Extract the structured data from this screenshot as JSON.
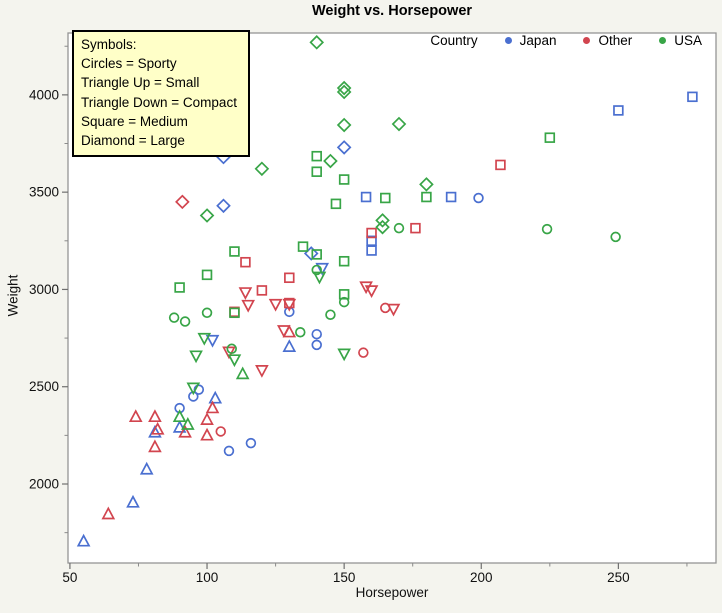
{
  "page": {
    "title": "Weight vs. Horsepower"
  },
  "symbols_legend": {
    "lines": [
      "Symbols:",
      "Circles = Sporty",
      "Triangle Up = Small",
      "Triangle Down = Compact",
      "Square = Medium",
      "Diamond = Large"
    ]
  },
  "country_legend": {
    "label": "Country",
    "entries": [
      {
        "label": "Japan",
        "color": "#4a6fd0"
      },
      {
        "label": "Other",
        "color": "#d2454f"
      },
      {
        "label": "USA",
        "color": "#38a547"
      }
    ]
  },
  "chart_data": {
    "type": "scatter",
    "title": "Weight vs. Horsepower",
    "xlabel": "Horsepower",
    "ylabel": "Weight",
    "xlim": [
      49.3,
      285.6
    ],
    "ylim": [
      1594,
      4318
    ],
    "x_ticks": [
      50,
      100,
      150,
      200,
      250
    ],
    "x_minor_ticks": [
      75,
      125,
      175,
      225,
      275
    ],
    "y_ticks": [
      2000,
      2500,
      3000,
      3500,
      4000
    ],
    "y_minor_ticks": [
      1750,
      2250,
      2750,
      3250,
      3750,
      4250
    ],
    "grid": false,
    "legend_position": "top-right-inside",
    "marker_meaning": {
      "circle": "Sporty",
      "triangle-up": "Small",
      "triangle-down": "Compact",
      "square": "Medium",
      "diamond": "Large"
    },
    "color_meaning": {
      "#4a6fd0": "Japan",
      "#d2454f": "Other",
      "#38a547": "USA"
    },
    "series": [
      {
        "name": "Japan Sporty",
        "country": "Japan",
        "vehicle_type": "Sporty",
        "marker": "circle",
        "color": "#4a6fd0",
        "points": [
          [
            199,
            3470
          ],
          [
            130,
            2885
          ],
          [
            140,
            2770
          ],
          [
            140,
            2715
          ],
          [
            116,
            2210
          ],
          [
            108,
            2170
          ],
          [
            97,
            2485
          ],
          [
            95,
            2450
          ],
          [
            90,
            2390
          ]
        ]
      },
      {
        "name": "Japan Small",
        "country": "Japan",
        "vehicle_type": "Small",
        "marker": "triangle-up",
        "color": "#4a6fd0",
        "points": [
          [
            130,
            2705
          ],
          [
            103,
            2440
          ],
          [
            90,
            2290
          ],
          [
            81,
            2265
          ],
          [
            78,
            2075
          ],
          [
            73,
            1905
          ],
          [
            55,
            1705
          ]
        ]
      },
      {
        "name": "Japan Compact",
        "country": "Japan",
        "vehicle_type": "Compact",
        "marker": "triangle-down",
        "color": "#4a6fd0",
        "points": [
          [
            142,
            3110
          ],
          [
            102,
            2740
          ]
        ]
      },
      {
        "name": "Japan Medium",
        "country": "Japan",
        "vehicle_type": "Medium",
        "marker": "square",
        "color": "#4a6fd0",
        "points": [
          [
            277,
            3990
          ],
          [
            250,
            3920
          ],
          [
            189,
            3475
          ],
          [
            158,
            3475
          ],
          [
            160,
            3250
          ],
          [
            160,
            3200
          ]
        ]
      },
      {
        "name": "Japan Large",
        "country": "Japan",
        "vehicle_type": "Large",
        "marker": "diamond",
        "color": "#4a6fd0",
        "points": [
          [
            150,
            3730
          ],
          [
            106,
            3680
          ],
          [
            106,
            3430
          ],
          [
            138,
            3185
          ]
        ]
      },
      {
        "name": "Other Sporty",
        "country": "Other",
        "vehicle_type": "Sporty",
        "marker": "circle",
        "color": "#d2454f",
        "points": [
          [
            165,
            2905
          ],
          [
            157,
            2675
          ],
          [
            105,
            2270
          ]
        ]
      },
      {
        "name": "Other Small",
        "country": "Other",
        "vehicle_type": "Small",
        "marker": "triangle-up",
        "color": "#d2454f",
        "points": [
          [
            130,
            2780
          ],
          [
            102,
            2390
          ],
          [
            100,
            2330
          ],
          [
            100,
            2250
          ],
          [
            92,
            2265
          ],
          [
            82,
            2280
          ],
          [
            81,
            2345
          ],
          [
            81,
            2190
          ],
          [
            74,
            2345
          ],
          [
            64,
            1845
          ]
        ]
      },
      {
        "name": "Other Compact",
        "country": "Other",
        "vehicle_type": "Compact",
        "marker": "triangle-down",
        "color": "#d2454f",
        "points": [
          [
            168,
            2900
          ],
          [
            160,
            2995
          ],
          [
            158,
            3015
          ],
          [
            130,
            2925
          ],
          [
            128,
            2790
          ],
          [
            125,
            2925
          ],
          [
            120,
            2585
          ],
          [
            115,
            2920
          ],
          [
            114,
            2985
          ],
          [
            108,
            2680
          ]
        ]
      },
      {
        "name": "Other Medium",
        "country": "Other",
        "vehicle_type": "Medium",
        "marker": "square",
        "color": "#d2454f",
        "points": [
          [
            207,
            3640
          ],
          [
            176,
            3315
          ],
          [
            160,
            3290
          ],
          [
            130,
            3060
          ],
          [
            130,
            2930
          ],
          [
            120,
            2995
          ],
          [
            114,
            3140
          ],
          [
            110,
            2885
          ]
        ]
      },
      {
        "name": "Other Large",
        "country": "Other",
        "vehicle_type": "Large",
        "marker": "diamond",
        "color": "#d2454f",
        "points": [
          [
            91,
            3450
          ]
        ]
      },
      {
        "name": "USA Sporty",
        "country": "USA",
        "vehicle_type": "Sporty",
        "marker": "circle",
        "color": "#38a547",
        "points": [
          [
            249,
            3270
          ],
          [
            224,
            3310
          ],
          [
            170,
            3315
          ],
          [
            150,
            2935
          ],
          [
            145,
            2870
          ],
          [
            140,
            3100
          ],
          [
            134,
            2780
          ],
          [
            109,
            2695
          ],
          [
            100,
            2880
          ],
          [
            92,
            2835
          ],
          [
            88,
            2855
          ]
        ]
      },
      {
        "name": "USA Small",
        "country": "USA",
        "vehicle_type": "Small",
        "marker": "triangle-up",
        "color": "#38a547",
        "points": [
          [
            113,
            2565
          ],
          [
            93,
            2305
          ],
          [
            90,
            2345
          ]
        ]
      },
      {
        "name": "USA Compact",
        "country": "USA",
        "vehicle_type": "Compact",
        "marker": "triangle-down",
        "color": "#38a547",
        "points": [
          [
            150,
            2670
          ],
          [
            141,
            3065
          ],
          [
            110,
            2640
          ],
          [
            99,
            2750
          ],
          [
            96,
            2660
          ],
          [
            95,
            2495
          ]
        ]
      },
      {
        "name": "USA Medium",
        "country": "USA",
        "vehicle_type": "Medium",
        "marker": "square",
        "color": "#38a547",
        "points": [
          [
            225,
            3780
          ],
          [
            180,
            3475
          ],
          [
            165,
            3470
          ],
          [
            150,
            3565
          ],
          [
            150,
            3145
          ],
          [
            150,
            2975
          ],
          [
            147,
            3440
          ],
          [
            140,
            3685
          ],
          [
            140,
            3605
          ],
          [
            140,
            3180
          ],
          [
            135,
            3220
          ],
          [
            110,
            3195
          ],
          [
            110,
            2880
          ],
          [
            100,
            3075
          ],
          [
            90,
            3010
          ]
        ]
      },
      {
        "name": "USA Large",
        "country": "USA",
        "vehicle_type": "Large",
        "marker": "diamond",
        "color": "#38a547",
        "points": [
          [
            140,
            4270
          ],
          [
            180,
            3540
          ],
          [
            170,
            3850
          ],
          [
            164,
            3355
          ],
          [
            164,
            3320
          ],
          [
            150,
            4035
          ],
          [
            150,
            4015
          ],
          [
            150,
            3845
          ],
          [
            145,
            3660
          ],
          [
            120,
            3620
          ],
          [
            100,
            3380
          ]
        ]
      }
    ]
  }
}
